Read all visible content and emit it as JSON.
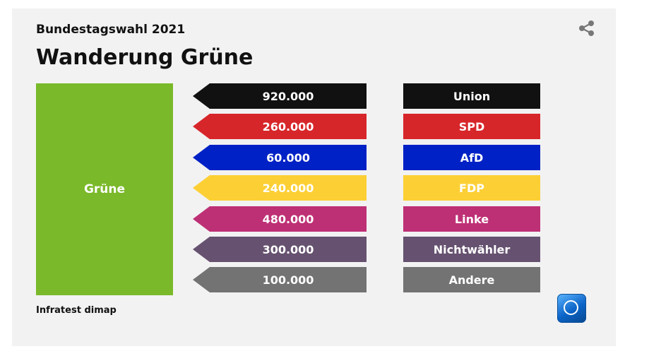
{
  "header": {
    "subtitle": "Bundestagswahl 2021",
    "title": "Wanderung Grüne"
  },
  "icons": {
    "share": "share-icon",
    "logo": "tagesschau-logo"
  },
  "source": "Infratest dimap",
  "chart_data": {
    "type": "bar",
    "title": "Wanderung Grüne",
    "subtitle": "Bundestagswahl 2021",
    "source_party": {
      "label": "Grüne",
      "color": "#7ab929"
    },
    "categories": [
      "Union",
      "SPD",
      "AfD",
      "FDP",
      "Linke",
      "Nichtwähler",
      "Andere"
    ],
    "values": [
      920000,
      260000,
      60000,
      240000,
      480000,
      300000,
      100000
    ],
    "value_labels": [
      "920.000",
      "260.000",
      "60.000",
      "240.000",
      "480.000",
      "300.000",
      "100.000"
    ],
    "colors": [
      "#111111",
      "#d7262a",
      "#0021c5",
      "#fccf34",
      "#be3075",
      "#665270",
      "#737373"
    ],
    "direction": "gains to Grüne from each party"
  }
}
